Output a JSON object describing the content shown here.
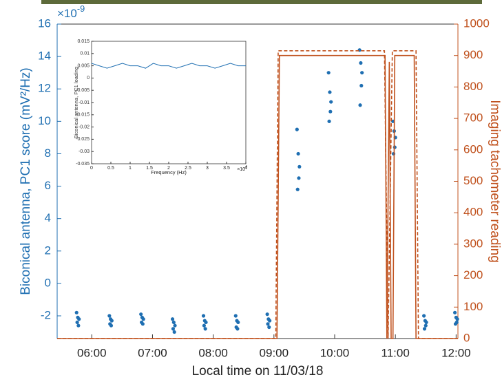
{
  "chart_data": [
    {
      "type": "scatter",
      "xlabel": "Local time on 11/03/18",
      "ylabel": "Biconical antenna, PC1 score (mV²/Hz)",
      "y2label": "Imaging tachometer reading",
      "y_multiplier": {
        "base": "×10",
        "exponent": "-9"
      },
      "xlim": [
        5.43,
        12.03
      ],
      "xticks": [
        {
          "value": 6,
          "label": "06:00"
        },
        {
          "value": 7,
          "label": "07:00"
        },
        {
          "value": 8,
          "label": "08:00"
        },
        {
          "value": 9,
          "label": "09:00"
        },
        {
          "value": 10,
          "label": "10:00"
        },
        {
          "value": 11,
          "label": "11:00"
        },
        {
          "value": 12,
          "label": "12:00"
        }
      ],
      "ylim": [
        -3.4,
        16
      ],
      "yticks": [
        -2,
        0,
        2,
        4,
        6,
        8,
        10,
        12,
        14,
        16
      ],
      "y2lim": [
        0,
        1000
      ],
      "y2ticks": [
        0,
        100,
        200,
        300,
        400,
        500,
        600,
        700,
        800,
        900,
        1000
      ],
      "series": [
        {
          "type": "scatter",
          "color": "#1f6fb2",
          "x": [
            5.75,
            5.76,
            5.77,
            5.78,
            5.79,
            6.29,
            6.3,
            6.31,
            6.32,
            6.33,
            6.81,
            6.82,
            6.83,
            6.84,
            6.85,
            7.33,
            7.34,
            7.35,
            7.36,
            7.37,
            7.84,
            7.85,
            7.86,
            7.87,
            7.88,
            8.37,
            8.38,
            8.39,
            8.4,
            8.41,
            8.89,
            8.9,
            8.91,
            8.92,
            8.93,
            9.38,
            9.39,
            9.4,
            9.41,
            9.42,
            9.9,
            9.91,
            9.92,
            9.93,
            9.94,
            10.41,
            10.42,
            10.43,
            10.44,
            10.45,
            10.96,
            10.97,
            10.98,
            10.99,
            11.0,
            11.47,
            11.48,
            11.49,
            11.5,
            11.51,
            11.98,
            11.99,
            12.0,
            12.01,
            12.02
          ],
          "values": [
            -1.8,
            -2.4,
            -2.1,
            -2.6,
            -2.2,
            -2.0,
            -2.5,
            -2.2,
            -2.6,
            -2.3,
            -1.9,
            -2.4,
            -2.1,
            -2.5,
            -2.2,
            -2.2,
            -2.8,
            -2.4,
            -3.0,
            -2.6,
            -2.0,
            -2.6,
            -2.3,
            -2.8,
            -2.4,
            -2.0,
            -2.7,
            -2.3,
            -2.8,
            -2.4,
            -1.9,
            -2.5,
            -2.2,
            -2.7,
            -2.3,
            9.5,
            5.8,
            8.0,
            6.5,
            7.2,
            13.0,
            10.0,
            11.8,
            10.6,
            11.2,
            14.4,
            11.0,
            13.6,
            12.2,
            13.0,
            10.0,
            8.0,
            9.4,
            8.4,
            9.0,
            -2.0,
            -2.8,
            -2.3,
            -2.6,
            -2.4,
            -1.8,
            -2.5,
            -2.1,
            -2.4,
            -2.2
          ]
        },
        {
          "type": "line",
          "axis": "y2",
          "color": "#c0511d",
          "x": [
            5.43,
            9.05,
            9.09,
            10.83,
            10.86,
            10.9,
            10.93,
            10.96,
            10.99,
            11.31,
            11.34,
            12.03
          ],
          "values": [
            0,
            0,
            900,
            900,
            0,
            880,
            0,
            0,
            900,
            900,
            0,
            0
          ]
        },
        {
          "type": "line",
          "axis": "y2",
          "color": "#c0511d",
          "style": "dashed",
          "x": [
            5.43,
            9.03,
            9.07,
            10.82,
            10.88,
            10.95,
            11.34,
            11.38,
            12.03
          ],
          "values": [
            0,
            0,
            915,
            915,
            0,
            915,
            915,
            0,
            0
          ]
        }
      ]
    },
    {
      "type": "line",
      "xlabel": "Frequency (Hz)",
      "ylabel": "Biconical antenna, PC1 loading",
      "x_multiplier": {
        "base": "×10",
        "exponent": "4"
      },
      "xlim": [
        0,
        4
      ],
      "xticks": [
        0,
        0.5,
        1,
        1.5,
        2,
        2.5,
        3,
        3.5,
        4
      ],
      "ylim": [
        -0.035,
        0.015
      ],
      "yticks": [
        0.015,
        0.01,
        0.005,
        0,
        -0.005,
        -0.01,
        -0.015,
        -0.02,
        -0.025,
        -0.03,
        -0.035
      ],
      "series": [
        {
          "color": "#1f6fb2",
          "x": [
            0,
            0.2,
            0.4,
            0.6,
            0.8,
            1,
            1.2,
            1.4,
            1.6,
            1.8,
            2,
            2.2,
            2.4,
            2.6,
            2.8,
            3,
            3.2,
            3.4,
            3.6,
            3.8,
            4
          ],
          "values": [
            0.006,
            0.005,
            0.004,
            0.005,
            0.006,
            0.005,
            0.005,
            0.004,
            0.006,
            0.005,
            0.005,
            0.004,
            0.005,
            0.006,
            0.005,
            0.005,
            0.004,
            0.005,
            0.006,
            0.005,
            0.005
          ]
        }
      ]
    }
  ]
}
